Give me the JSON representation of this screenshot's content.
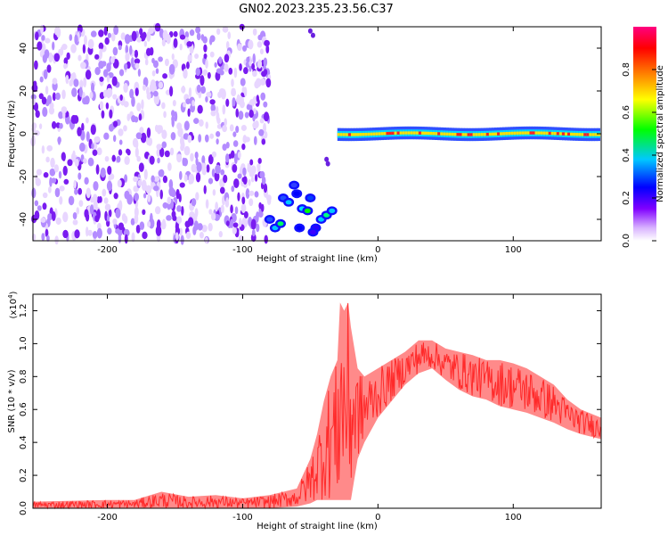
{
  "title": "GN02.2023.235.23.56.C37",
  "chart_data": [
    {
      "type": "heatmap",
      "xlabel": "Height of straight line (km)",
      "ylabel": "Frequency (Hz)",
      "xlim": [
        -255,
        165
      ],
      "ylim": [
        -50,
        50
      ],
      "xticks": [
        -200,
        -100,
        0,
        100
      ],
      "yticks": [
        -40,
        -20,
        0,
        20,
        40
      ],
      "colorbar": {
        "label": "Normalized spectral amplitude",
        "range": [
          0.0,
          1.0
        ],
        "ticks": [
          "0.0",
          "0.2",
          "0.4",
          "0.6",
          "0.8"
        ],
        "tick_values": [
          0.0,
          0.2,
          0.4,
          0.6,
          0.8
        ],
        "colors": [
          "#ffffff",
          "#d9b3ff",
          "#8000ff",
          "#0000ff",
          "#00c8ff",
          "#00ff00",
          "#ffff00",
          "#ff8000",
          "#ff0000",
          "#ff0080"
        ]
      },
      "features": [
        {
          "region": "noise",
          "x": [
            -255,
            -80
          ],
          "y": [
            -50,
            50
          ],
          "amplitude": 0.15
        },
        {
          "region": "arc",
          "x": [
            -82,
            -30
          ],
          "y": [
            -48,
            -22
          ],
          "amplitude": 0.45
        },
        {
          "region": "line",
          "x": [
            -30,
            165
          ],
          "y": [
            -3,
            3
          ],
          "amplitude": 0.8
        }
      ]
    },
    {
      "type": "line",
      "xlabel": "Height of straight line (km)",
      "ylabel": "SNR (10 * v/v)",
      "y_multiplier": "(x10",
      "y_multiplier_exp": "4",
      "y_multiplier_close": ")",
      "xlim": [
        -255,
        165
      ],
      "ylim": [
        0,
        1.3
      ],
      "xticks": [
        -200,
        -100,
        0,
        100
      ],
      "yticks": [
        "0.0",
        "0.2",
        "0.4",
        "0.6",
        "0.8",
        "1.0",
        "1.2"
      ],
      "ytick_values": [
        0,
        0.2,
        0.4,
        0.6,
        0.8,
        1.0,
        1.2
      ],
      "series": [
        {
          "color": "#ff2a2a",
          "envelope": {
            "x": [
              -255,
              -200,
              -180,
              -160,
              -140,
              -120,
              -100,
              -80,
              -60,
              -50,
              -45,
              -40,
              -35,
              -30,
              -28,
              -25,
              -22,
              -20,
              -15,
              -10,
              0,
              10,
              20,
              30,
              40,
              50,
              60,
              70,
              80,
              90,
              100,
              110,
              120,
              130,
              140,
              150,
              165
            ],
            "low": [
              0.0,
              0.0,
              0.0,
              0.0,
              0.0,
              0.0,
              0.0,
              0.0,
              0.01,
              0.03,
              0.05,
              0.05,
              0.05,
              0.05,
              0.05,
              0.05,
              0.05,
              0.05,
              0.3,
              0.4,
              0.55,
              0.65,
              0.75,
              0.82,
              0.85,
              0.78,
              0.72,
              0.68,
              0.66,
              0.62,
              0.6,
              0.58,
              0.55,
              0.52,
              0.48,
              0.45,
              0.42
            ],
            "high": [
              0.04,
              0.05,
              0.05,
              0.1,
              0.07,
              0.08,
              0.06,
              0.08,
              0.12,
              0.3,
              0.45,
              0.65,
              0.8,
              0.9,
              1.25,
              1.2,
              1.25,
              1.1,
              0.85,
              0.8,
              0.85,
              0.9,
              0.95,
              1.02,
              1.02,
              0.97,
              0.95,
              0.93,
              0.9,
              0.9,
              0.88,
              0.85,
              0.8,
              0.75,
              0.66,
              0.6,
              0.55
            ]
          }
        }
      ]
    }
  ]
}
